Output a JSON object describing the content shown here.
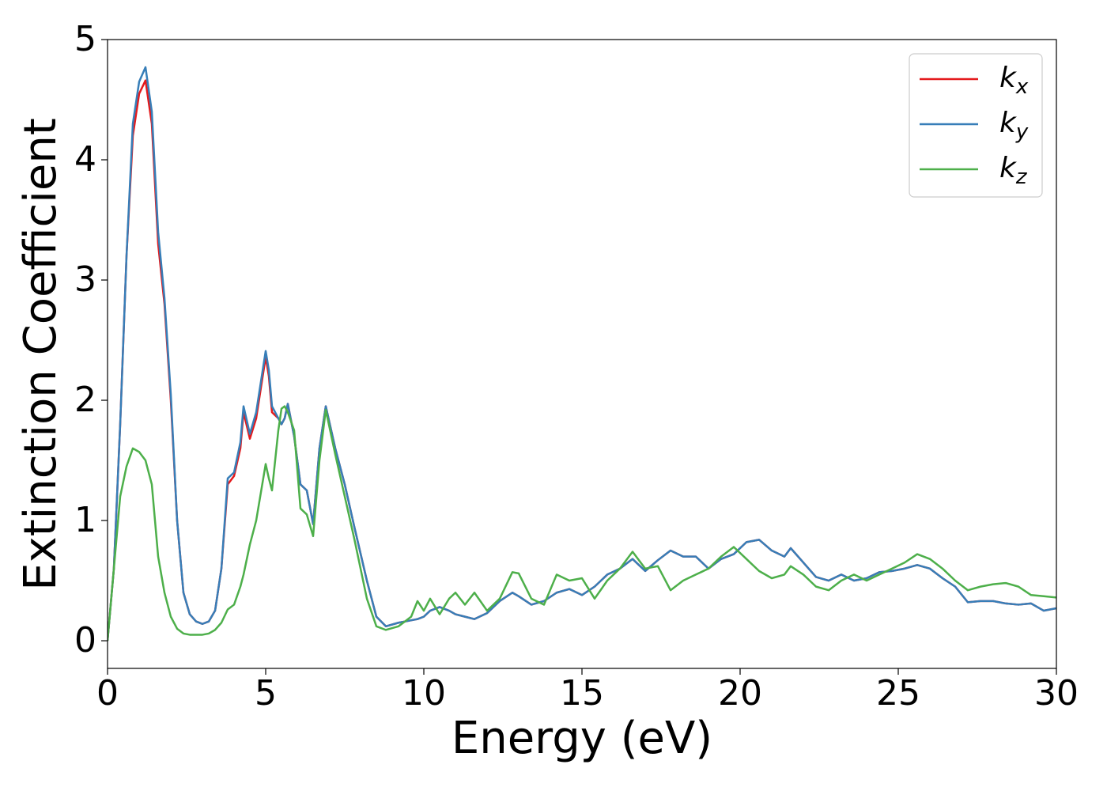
{
  "chart_data": {
    "type": "line",
    "x_label": "Energy (eV)",
    "y_label": "Extinction Coefficient",
    "x": [
      0,
      0.2,
      0.4,
      0.6,
      0.8,
      1.0,
      1.2,
      1.4,
      1.6,
      1.8,
      2.0,
      2.2,
      2.4,
      2.6,
      2.8,
      3.0,
      3.2,
      3.4,
      3.6,
      3.8,
      4.0,
      4.2,
      4.3,
      4.5,
      4.7,
      5.0,
      5.1,
      5.2,
      5.4,
      5.5,
      5.6,
      5.7,
      5.9,
      6.1,
      6.3,
      6.5,
      6.7,
      6.9,
      7.2,
      7.5,
      7.8,
      8.2,
      8.5,
      8.8,
      9.2,
      9.6,
      9.8,
      10.0,
      10.2,
      10.5,
      10.8,
      11.0,
      11.3,
      11.6,
      12.0,
      12.4,
      12.8,
      13.0,
      13.4,
      13.8,
      14.2,
      14.6,
      15.0,
      15.4,
      15.8,
      16.2,
      16.6,
      17.0,
      17.4,
      17.8,
      18.2,
      18.6,
      19.0,
      19.4,
      19.8,
      20.2,
      20.6,
      21.0,
      21.4,
      21.6,
      22.0,
      22.4,
      22.8,
      23.2,
      23.6,
      24.0,
      24.4,
      24.8,
      25.2,
      25.6,
      26.0,
      26.4,
      26.8,
      27.2,
      27.6,
      28.0,
      28.4,
      28.8,
      29.2,
      29.6,
      30.0
    ],
    "series": [
      {
        "name": "kx",
        "color": "#e41a1c",
        "values": [
          0,
          0.6,
          1.8,
          3.2,
          4.2,
          4.55,
          4.66,
          4.3,
          3.3,
          2.8,
          2.0,
          1.0,
          0.4,
          0.22,
          0.16,
          0.14,
          0.16,
          0.25,
          0.6,
          1.3,
          1.37,
          1.6,
          1.9,
          1.68,
          1.85,
          2.36,
          2.2,
          1.9,
          1.85,
          1.8,
          1.85,
          1.97,
          1.7,
          1.3,
          1.25,
          0.97,
          1.6,
          1.95,
          1.6,
          1.3,
          0.95,
          0.5,
          0.2,
          0.12,
          0.15,
          0.17,
          0.18,
          0.2,
          0.25,
          0.28,
          0.25,
          0.22,
          0.2,
          0.18,
          0.23,
          0.33,
          0.4,
          0.37,
          0.3,
          0.33,
          0.4,
          0.43,
          0.38,
          0.45,
          0.55,
          0.6,
          0.68,
          0.58,
          0.67,
          0.75,
          0.7,
          0.7,
          0.6,
          0.68,
          0.72,
          0.82,
          0.84,
          0.75,
          0.7,
          0.77,
          0.65,
          0.53,
          0.5,
          0.55,
          0.5,
          0.52,
          0.57,
          0.58,
          0.6,
          0.63,
          0.6,
          0.52,
          0.45,
          0.32,
          0.33,
          0.33,
          0.31,
          0.3,
          0.31,
          0.25,
          0.27
        ]
      },
      {
        "name": "ky",
        "color": "#377eb8",
        "values": [
          0,
          0.6,
          1.8,
          3.2,
          4.3,
          4.65,
          4.77,
          4.4,
          3.4,
          2.85,
          2.05,
          1.0,
          0.4,
          0.22,
          0.16,
          0.14,
          0.16,
          0.25,
          0.6,
          1.35,
          1.4,
          1.65,
          1.95,
          1.72,
          1.9,
          2.41,
          2.25,
          1.95,
          1.85,
          1.8,
          1.85,
          1.97,
          1.7,
          1.3,
          1.25,
          0.97,
          1.6,
          1.95,
          1.6,
          1.3,
          0.95,
          0.5,
          0.2,
          0.12,
          0.15,
          0.17,
          0.18,
          0.2,
          0.25,
          0.28,
          0.25,
          0.22,
          0.2,
          0.18,
          0.23,
          0.33,
          0.4,
          0.37,
          0.3,
          0.33,
          0.4,
          0.43,
          0.38,
          0.45,
          0.55,
          0.6,
          0.68,
          0.58,
          0.67,
          0.75,
          0.7,
          0.7,
          0.6,
          0.68,
          0.72,
          0.82,
          0.84,
          0.75,
          0.7,
          0.77,
          0.65,
          0.53,
          0.5,
          0.55,
          0.5,
          0.52,
          0.57,
          0.58,
          0.6,
          0.63,
          0.6,
          0.52,
          0.45,
          0.32,
          0.33,
          0.33,
          0.31,
          0.3,
          0.31,
          0.25,
          0.27
        ]
      },
      {
        "name": "kz",
        "color": "#4daf4a",
        "values": [
          0,
          0.6,
          1.2,
          1.45,
          1.6,
          1.57,
          1.5,
          1.3,
          0.7,
          0.4,
          0.2,
          0.1,
          0.06,
          0.05,
          0.05,
          0.05,
          0.06,
          0.09,
          0.15,
          0.26,
          0.3,
          0.45,
          0.55,
          0.8,
          1.0,
          1.47,
          1.35,
          1.25,
          1.75,
          1.93,
          1.95,
          1.9,
          1.75,
          1.1,
          1.05,
          0.87,
          1.5,
          1.92,
          1.55,
          1.2,
          0.85,
          0.35,
          0.12,
          0.09,
          0.12,
          0.2,
          0.33,
          0.25,
          0.35,
          0.22,
          0.35,
          0.4,
          0.3,
          0.4,
          0.25,
          0.35,
          0.57,
          0.56,
          0.35,
          0.3,
          0.55,
          0.5,
          0.52,
          0.35,
          0.5,
          0.6,
          0.74,
          0.6,
          0.62,
          0.42,
          0.5,
          0.55,
          0.6,
          0.7,
          0.78,
          0.68,
          0.58,
          0.52,
          0.55,
          0.62,
          0.55,
          0.45,
          0.42,
          0.5,
          0.55,
          0.5,
          0.55,
          0.6,
          0.65,
          0.72,
          0.68,
          0.6,
          0.5,
          0.42,
          0.45,
          0.47,
          0.48,
          0.45,
          0.38,
          0.37,
          0.36
        ]
      }
    ],
    "xlim": [
      0,
      30
    ],
    "xticks": [
      0,
      5,
      10,
      15,
      20,
      25,
      30
    ],
    "ylim": [
      -0.23,
      5.0
    ],
    "yticks": [
      0,
      1,
      2,
      3,
      4,
      5
    ],
    "grid": false,
    "legend": "upper right"
  }
}
